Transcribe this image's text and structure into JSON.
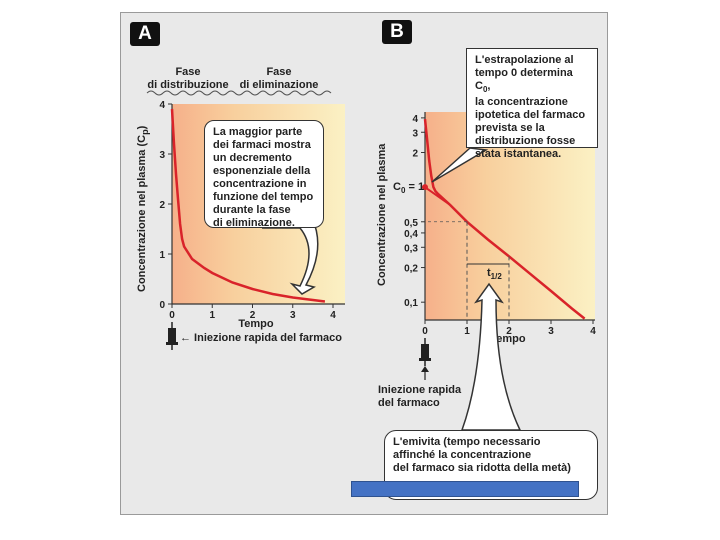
{
  "panel_a": {
    "badge": "A",
    "phase_distribution": [
      "Fase",
      "di distribuzione"
    ],
    "phase_elimination": [
      "Fase",
      "di eliminazione"
    ],
    "y_title": "Concentrazione nel plasma (C",
    "y_title_sub": "p",
    "y_title_end": ")",
    "x_title": "Tempo",
    "callout": [
      "La maggior parte",
      "dei farmaci mostra",
      "un decremento",
      "esponenziale della",
      "concentrazione in",
      "funzione del tempo",
      "durante la fase",
      "di eliminazione."
    ],
    "injection_caption": "← Iniezione rapida del farmaco"
  },
  "panel_b": {
    "badge": "B",
    "y_title": "Concentrazione nel plasma",
    "x_title": "Tempo",
    "c0_label": "C",
    "c0_sub": "0",
    "c0_eq": " = 1",
    "half_life_label": "t",
    "half_life_sub": "1/2",
    "callout_top": [
      "L'estrapolazione al",
      "tempo 0 determina C",
      "la concentrazione",
      "ipotetica del farmaco",
      "prevista se la",
      "distribuzione fosse",
      "stata istantanea."
    ],
    "callout_top_sub": "0",
    "callout_top_tail": ",",
    "callout_bottom": [
      "L'emivita (tempo necessario",
      "affinché la concentrazione",
      "del farmaco sia ridotta della metà)"
    ],
    "injection_caption": [
      "Iniezione rapida",
      "del farmaco"
    ]
  },
  "colors": {
    "curve": "#d9232a",
    "shade_start": "#f6b08a",
    "shade_end": "#fbf1c4",
    "frame": "#e9e9e9",
    "overlay_bar": "#4472c4"
  },
  "chart_data": [
    {
      "type": "line",
      "title": "",
      "xlabel": "Tempo",
      "ylabel": "Concentrazione nel plasma (Cp)",
      "x_ticks": [
        0,
        1,
        2,
        3,
        4
      ],
      "y_ticks": [
        0,
        1,
        2,
        3,
        4
      ],
      "xlim": [
        0,
        4
      ],
      "ylim": [
        0,
        4
      ],
      "series": [
        {
          "x": [
            0,
            0.05,
            0.1,
            0.15,
            0.2,
            0.25,
            0.3,
            0.5,
            0.8,
            1.0,
            1.5,
            2.0,
            2.5,
            3.0,
            3.5,
            3.8
          ],
          "y": [
            3.9,
            3.2,
            2.6,
            2.1,
            1.6,
            1.3,
            1.15,
            0.9,
            0.72,
            0.62,
            0.43,
            0.3,
            0.2,
            0.13,
            0.08,
            0.05
          ]
        }
      ]
    },
    {
      "type": "line",
      "title": "",
      "xlabel": "Tempo",
      "ylabel": "Concentrazione nel plasma",
      "y_scale": "log",
      "x_ticks": [
        0,
        1,
        2,
        3,
        4
      ],
      "y_ticks": [
        0.1,
        0.2,
        0.3,
        0.4,
        0.5,
        1,
        2,
        3,
        4
      ],
      "xlim": [
        0,
        4
      ],
      "ylim": [
        0.07,
        4.5
      ],
      "series": [
        {
          "x": [
            0,
            0.05,
            0.1,
            0.15,
            0.2,
            0.25,
            0.3,
            0.6,
            1.0,
            1.5,
            2.0,
            2.5,
            3.0,
            3.5,
            3.8
          ],
          "y": [
            3.9,
            2.6,
            1.7,
            1.25,
            1.0,
            0.92,
            0.88,
            0.7,
            0.5,
            0.35,
            0.25,
            0.177,
            0.125,
            0.088,
            0.072
          ]
        }
      ],
      "c0": 1,
      "half_life": [
        1,
        2
      ]
    }
  ]
}
